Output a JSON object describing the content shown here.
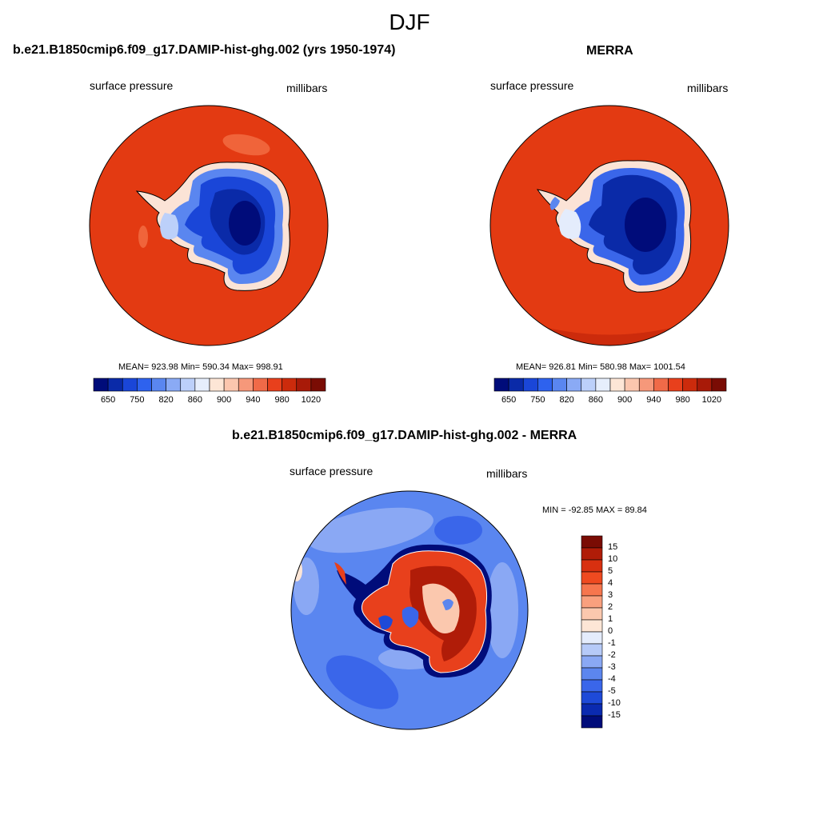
{
  "figure_title": "DJF",
  "panels": [
    {
      "title": "b.e21.B1850cmip6.f09_g17.DAMIP-hist-ghg.002 (yrs 1950-1974)",
      "variable": "surface pressure",
      "units": "millibars",
      "stats": "MEAN= 923.98  Min= 590.34  Max= 998.91"
    },
    {
      "title": "MERRA",
      "variable": "surface pressure",
      "units": "millibars",
      "stats": "MEAN= 926.81  Min= 580.98  Max= 1001.54"
    },
    {
      "title": "b.e21.B1850cmip6.f09_g17.DAMIP-hist-ghg.002 - MERRA",
      "variable": "surface pressure",
      "units": "millibars",
      "stats": "MIN = -92.85 MAX =  89.84"
    }
  ],
  "colorbar_horizontal": {
    "tick_labels": [
      "650",
      "750",
      "820",
      "860",
      "900",
      "940",
      "980",
      "1020"
    ],
    "colors": [
      "#000c7a",
      "#0a2aa8",
      "#1a46d8",
      "#2e62ee",
      "#5a86f0",
      "#8aaaf5",
      "#bcd0fa",
      "#e6eefc",
      "#fde6d6",
      "#fbc6ae",
      "#f6987a",
      "#f06a48",
      "#e8401c",
      "#cc2b0c",
      "#a81a08",
      "#7a0c04"
    ]
  },
  "colorbar_vertical": {
    "tick_labels": [
      "15",
      "10",
      "5",
      "4",
      "3",
      "2",
      "1",
      "0",
      "-1",
      "-2",
      "-3",
      "-4",
      "-5",
      "-10",
      "-15"
    ],
    "colors": [
      "#7a0c04",
      "#b01c08",
      "#d83010",
      "#ef4a20",
      "#f6764e",
      "#f9a07e",
      "#fbc8ae",
      "#fde6d6",
      "#e4ecfc",
      "#b6caf8",
      "#8aa8f4",
      "#5c86ee",
      "#3a66ea",
      "#1e4ad8",
      "#0a2ab0",
      "#000c7a"
    ]
  }
}
